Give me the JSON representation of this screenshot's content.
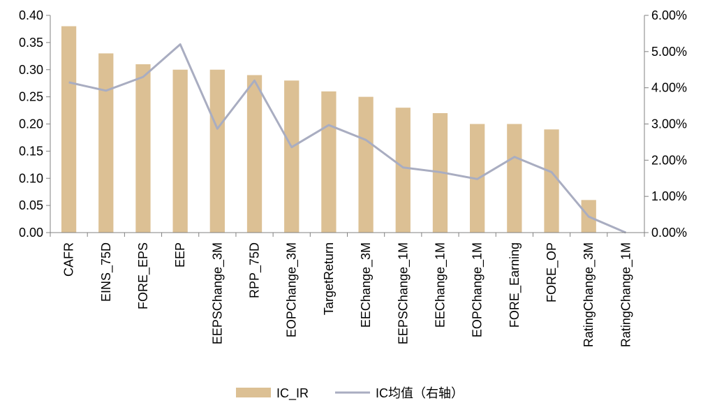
{
  "chart_data": {
    "type": "bar+line",
    "categories": [
      "CAFR",
      "EINS_75D",
      "FORE_EPS",
      "EEP",
      "EEPSChange_3M",
      "RPP_75D",
      "EOPChange_3M",
      "TargetReturn",
      "EEChange_3M",
      "EEPSChange_1M",
      "EEChange_1M",
      "EOPChange_1M",
      "FORE_Earning",
      "FORE_OP",
      "RatingChange_3M",
      "RatingChange_1M"
    ],
    "series": [
      {
        "name": "IC_IR",
        "type": "bar",
        "axis": "left",
        "color": "#dcc094",
        "values": [
          0.38,
          0.33,
          0.31,
          0.3,
          0.3,
          0.29,
          0.28,
          0.26,
          0.25,
          0.23,
          0.22,
          0.2,
          0.2,
          0.19,
          0.06,
          0.0
        ]
      },
      {
        "name": "IC均值（右轴）",
        "type": "line",
        "axis": "right",
        "color": "#a9adc1",
        "values": [
          0.0415,
          0.0392,
          0.043,
          0.052,
          0.0287,
          0.042,
          0.0236,
          0.0297,
          0.0256,
          0.018,
          0.0167,
          0.0148,
          0.0209,
          0.0167,
          0.0044,
          0.0
        ]
      }
    ],
    "y_left": {
      "lim": [
        0,
        0.4
      ],
      "ticks": [
        "0.00",
        "0.05",
        "0.10",
        "0.15",
        "0.20",
        "0.25",
        "0.30",
        "0.35",
        "0.40"
      ]
    },
    "y_right": {
      "lim": [
        0,
        0.06
      ],
      "ticks": [
        "0.00%",
        "1.00%",
        "2.00%",
        "3.00%",
        "4.00%",
        "5.00%",
        "6.00%"
      ]
    },
    "grid": false,
    "legend_position": "bottom"
  },
  "legend": {
    "bar_label": "IC_IR",
    "line_label": "IC均值（右轴）"
  }
}
